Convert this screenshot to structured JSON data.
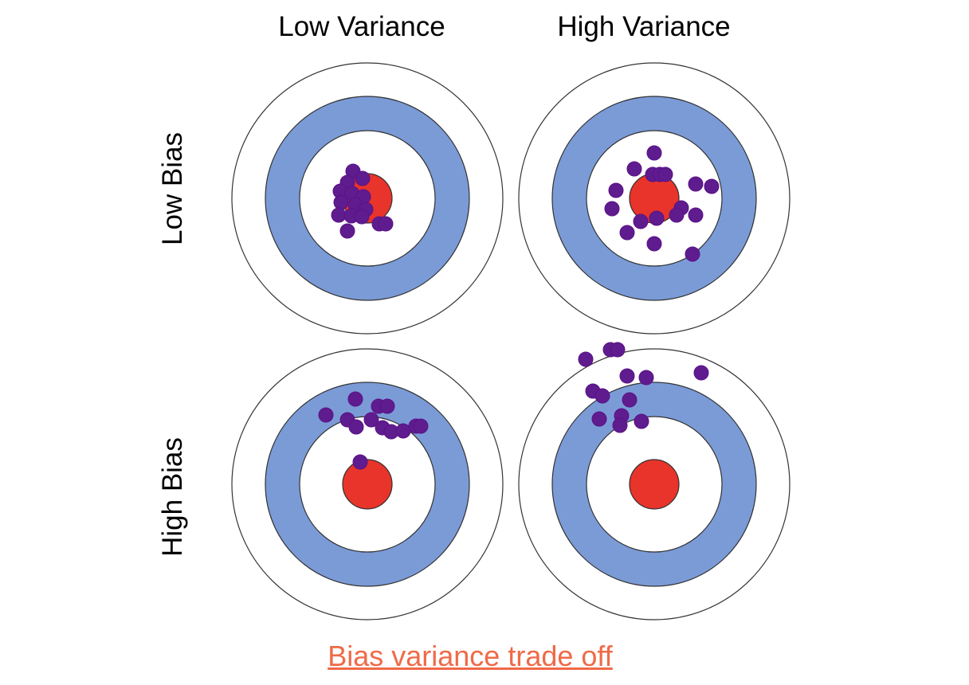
{
  "columns": [
    {
      "label": "Low Variance"
    },
    {
      "label": "High Variance"
    }
  ],
  "rows": [
    {
      "label": "Low Bias"
    },
    {
      "label": "High Bias"
    }
  ],
  "caption": {
    "text": "Bias variance trade off"
  },
  "colors": {
    "outer_ring": "#ffffff",
    "blue_ring": "#7b9bd7",
    "bullseye": "#e8342a",
    "dot": "#5f1c8e",
    "caption": "#ef6a47"
  }
}
